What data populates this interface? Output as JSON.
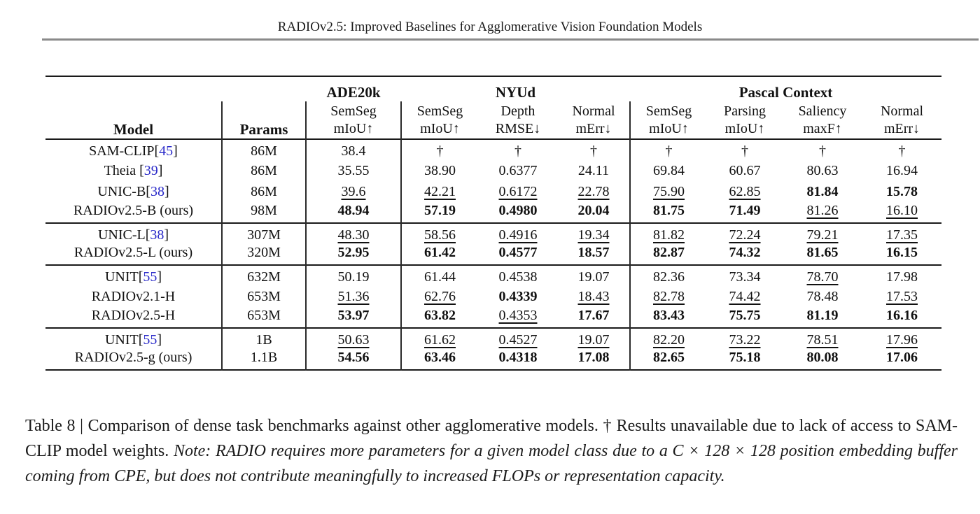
{
  "header": {
    "running_title": "RADIOv2.5: Improved Baselines for Agglomerative Vision Foundation Models"
  },
  "colors": {
    "citation_blue": "#2828c8",
    "title_rule_gray": "#8a8a8a",
    "table_rule_black": "#1a1a1a"
  },
  "table": {
    "corner": {
      "model": "Model",
      "params": "Params"
    },
    "groups_header": [
      {
        "label": "ADE20k",
        "span": 1
      },
      {
        "label": "NYUd",
        "span": 3
      },
      {
        "label": "Pascal Context",
        "span": 4
      }
    ],
    "metric_columns": [
      {
        "task": "SemSeg",
        "metric": "mIoU↑"
      },
      {
        "task": "SemSeg",
        "metric": "mIoU↑"
      },
      {
        "task": "Depth",
        "metric": "RMSE↓"
      },
      {
        "task": "Normal",
        "metric": "mErr↓"
      },
      {
        "task": "SemSeg",
        "metric": "mIoU↑"
      },
      {
        "task": "Parsing",
        "metric": "mIoU↑"
      },
      {
        "task": "Saliency",
        "metric": "maxF↑"
      },
      {
        "task": "Normal",
        "metric": "mErr↓"
      }
    ],
    "row_groups": [
      {
        "rows": [
          {
            "model_pre": "SAM-CLIP[",
            "cite": "45",
            "model_post": "]",
            "params": "86M",
            "values": [
              "38.4",
              "†",
              "†",
              "†",
              "†",
              "†",
              "†",
              "†"
            ],
            "styles": [
              "",
              "",
              "",
              "",
              "",
              "",
              "",
              ""
            ]
          },
          {
            "model_pre": "Theia [",
            "cite": "39",
            "model_post": "]",
            "params": "86M",
            "values": [
              "35.55",
              "38.90",
              "0.6377",
              "24.11",
              "69.84",
              "60.67",
              "80.63",
              "16.94"
            ],
            "styles": [
              "",
              "",
              "",
              "",
              "",
              "",
              "",
              ""
            ]
          },
          {
            "model_pre": "UNIC-B[",
            "cite": "38",
            "model_post": "]",
            "params": "86M",
            "values": [
              "39.6",
              "42.21",
              "0.6172",
              "22.78",
              "75.90",
              "62.85",
              "81.84",
              "15.78"
            ],
            "styles": [
              "u",
              "u",
              "u",
              "u",
              "u",
              "u",
              "b",
              "b"
            ]
          },
          {
            "model_pre": "RADIOv2.5-B (ours)",
            "cite": "",
            "model_post": "",
            "params": "98M",
            "values": [
              "48.94",
              "57.19",
              "0.4980",
              "20.04",
              "81.75",
              "71.49",
              "81.26",
              "16.10"
            ],
            "styles": [
              "b",
              "b",
              "b",
              "b",
              "b",
              "b",
              "u",
              "u"
            ]
          }
        ]
      },
      {
        "rows": [
          {
            "model_pre": "UNIC-L[",
            "cite": "38",
            "model_post": "]",
            "params": "307M",
            "values": [
              "48.30",
              "58.56",
              "0.4916",
              "19.34",
              "81.82",
              "72.24",
              "79.21",
              "17.35"
            ],
            "styles": [
              "u",
              "u",
              "u",
              "u",
              "u",
              "u",
              "u",
              "u"
            ]
          },
          {
            "model_pre": "RADIOv2.5-L (ours)",
            "cite": "",
            "model_post": "",
            "params": "320M",
            "values": [
              "52.95",
              "61.42",
              "0.4577",
              "18.57",
              "82.87",
              "74.32",
              "81.65",
              "16.15"
            ],
            "styles": [
              "b",
              "b",
              "b",
              "b",
              "b",
              "b",
              "b",
              "b"
            ]
          }
        ]
      },
      {
        "rows": [
          {
            "model_pre": "UNIT[",
            "cite": "55",
            "model_post": "]",
            "params": "632M",
            "values": [
              "50.19",
              "61.44",
              "0.4538",
              "19.07",
              "82.36",
              "73.34",
              "78.70",
              "17.98"
            ],
            "styles": [
              "",
              "",
              "",
              "",
              "",
              "",
              "u",
              ""
            ]
          },
          {
            "model_pre": "RADIOv2.1-H",
            "cite": "",
            "model_post": "",
            "params": "653M",
            "values": [
              "51.36",
              "62.76",
              "0.4339",
              "18.43",
              "82.78",
              "74.42",
              "78.48",
              "17.53"
            ],
            "styles": [
              "u",
              "u",
              "b",
              "u",
              "u",
              "u",
              "",
              "u"
            ]
          },
          {
            "model_pre": "RADIOv2.5-H",
            "cite": "",
            "model_post": "",
            "params": "653M",
            "values": [
              "53.97",
              "63.82",
              "0.4353",
              "17.67",
              "83.43",
              "75.75",
              "81.19",
              "16.16"
            ],
            "styles": [
              "b",
              "b",
              "u",
              "b",
              "b",
              "b",
              "b",
              "b"
            ]
          }
        ]
      },
      {
        "rows": [
          {
            "model_pre": "UNIT[",
            "cite": "55",
            "model_post": "]",
            "params": "1B",
            "values": [
              "50.63",
              "61.62",
              "0.4527",
              "19.07",
              "82.20",
              "73.22",
              "78.51",
              "17.96"
            ],
            "styles": [
              "u",
              "u",
              "u",
              "u",
              "u",
              "u",
              "u",
              "u"
            ]
          },
          {
            "model_pre": "RADIOv2.5-g (ours)",
            "cite": "",
            "model_post": "",
            "params": "1.1B",
            "values": [
              "54.56",
              "63.46",
              "0.4318",
              "17.08",
              "82.65",
              "75.18",
              "80.08",
              "17.06"
            ],
            "styles": [
              "b",
              "b",
              "b",
              "b",
              "b",
              "b",
              "b",
              "b"
            ]
          }
        ]
      }
    ]
  },
  "caption": {
    "regular": "Table 8 | Comparison of dense task benchmarks against other agglomerative models. † Results unavailable due to lack of access to SAM-CLIP model weights. ",
    "italic": "Note: RADIO requires more parameters for a given model class due to a C × 128 × 128 position embedding buffer coming from CPE, but does not contribute meaningfully to increased FLOPs or representation capacity."
  }
}
